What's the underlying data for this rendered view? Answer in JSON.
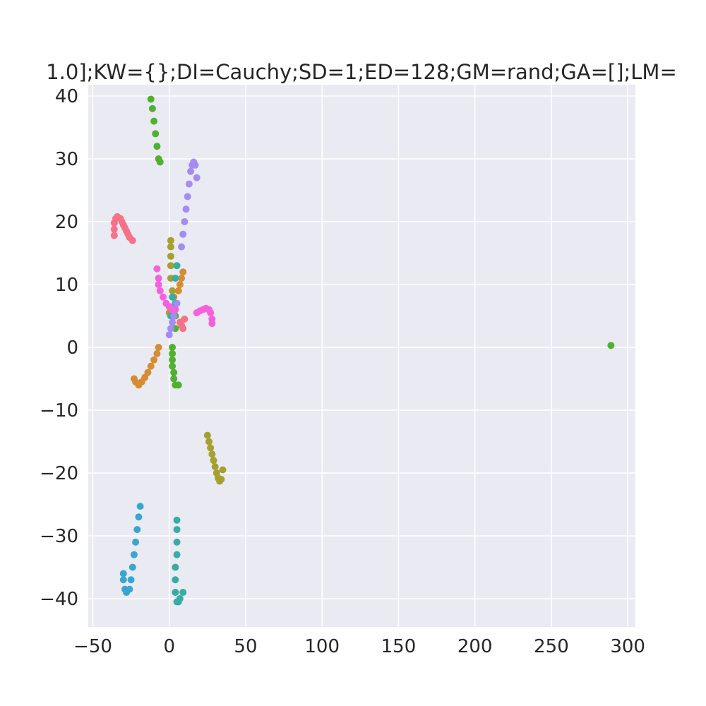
{
  "chart_data": {
    "type": "scatter",
    "title": "1.0];KW={};DI=Cauchy;SD=1;ED=128;GM=rand;GA=[];LM=",
    "xlabel": "",
    "ylabel": "",
    "xlim": [
      -53,
      305
    ],
    "ylim": [
      -44.5,
      41.8
    ],
    "xticks": [
      -50,
      0,
      50,
      100,
      150,
      200,
      250,
      300
    ],
    "yticks": [
      -40,
      -30,
      -20,
      -10,
      0,
      10,
      20,
      30,
      40
    ],
    "xtick_labels": [
      "−50",
      "0",
      "50",
      "100",
      "150",
      "200",
      "250",
      "300"
    ],
    "ytick_labels": [
      "−40",
      "−30",
      "−20",
      "−10",
      "0",
      "10",
      "20",
      "30",
      "40"
    ],
    "grid": true,
    "background": "#eaeaf2",
    "grid_color": "#ffffff",
    "series": [
      {
        "color": "#f77189",
        "points": [
          [
            -36,
            17.8
          ],
          [
            -36,
            18.8
          ],
          [
            -36,
            19.8
          ],
          [
            -35,
            20.5
          ],
          [
            -34,
            20.8
          ],
          [
            -32,
            20.5
          ],
          [
            -31,
            20
          ],
          [
            -30,
            19.5
          ],
          [
            -29,
            19
          ],
          [
            -28,
            18.5
          ],
          [
            -27,
            18
          ],
          [
            -26,
            17.5
          ],
          [
            -24,
            17
          ],
          [
            10,
            4.5
          ],
          [
            9,
            3
          ],
          [
            8,
            3.5
          ],
          [
            7,
            4
          ]
        ]
      },
      {
        "color": "#d58c32",
        "points": [
          [
            -7,
            0
          ],
          [
            -8,
            -1
          ],
          [
            -10,
            -2
          ],
          [
            -12,
            -3
          ],
          [
            -14,
            -4
          ],
          [
            -16,
            -4.8
          ],
          [
            -18,
            -5.5
          ],
          [
            -20,
            -6
          ],
          [
            -22,
            -5.5
          ],
          [
            -23,
            -5
          ],
          [
            6,
            9
          ],
          [
            7,
            10
          ],
          [
            8,
            11
          ],
          [
            9,
            12
          ],
          [
            1,
            6
          ],
          [
            0,
            5.5
          ]
        ]
      },
      {
        "color": "#a4a031",
        "points": [
          [
            25,
            -14
          ],
          [
            26,
            -15
          ],
          [
            27,
            -16
          ],
          [
            28,
            -17
          ],
          [
            29,
            -18
          ],
          [
            30,
            -19
          ],
          [
            31,
            -20
          ],
          [
            32,
            -20.8
          ],
          [
            33,
            -21.3
          ],
          [
            34,
            -21
          ],
          [
            35,
            -19.5
          ],
          [
            1,
            17
          ],
          [
            1,
            16
          ],
          [
            1,
            14.5
          ],
          [
            1,
            13
          ],
          [
            1,
            11
          ],
          [
            2,
            9
          ],
          [
            3,
            8
          ]
        ]
      },
      {
        "color": "#50b131",
        "points": [
          [
            -12,
            39.5
          ],
          [
            -11,
            38
          ],
          [
            -10,
            36
          ],
          [
            -9,
            34
          ],
          [
            -8,
            32
          ],
          [
            -7,
            30
          ],
          [
            -6,
            29.5
          ],
          [
            2,
            0
          ],
          [
            2,
            -1
          ],
          [
            2,
            -2
          ],
          [
            2,
            -3
          ],
          [
            3,
            -4
          ],
          [
            3,
            -5
          ],
          [
            4,
            -6
          ],
          [
            6,
            -6
          ],
          [
            289,
            0.3
          ],
          [
            4,
            3
          ],
          [
            4,
            5
          ]
        ]
      },
      {
        "color": "#36ada4",
        "points": [
          [
            5,
            -27.5
          ],
          [
            5,
            -29
          ],
          [
            5,
            -31
          ],
          [
            5,
            -33
          ],
          [
            4,
            -35
          ],
          [
            4,
            -37
          ],
          [
            4,
            -39
          ],
          [
            5,
            -40.5
          ],
          [
            6,
            -40.5
          ],
          [
            7,
            -40
          ],
          [
            9,
            -39
          ],
          [
            4,
            11
          ],
          [
            5,
            13
          ],
          [
            2,
            8
          ],
          [
            1,
            5
          ]
        ]
      },
      {
        "color": "#38a7d0",
        "points": [
          [
            -19,
            -25.3
          ],
          [
            -20,
            -27
          ],
          [
            -21,
            -29
          ],
          [
            -22,
            -31
          ],
          [
            -23,
            -33
          ],
          [
            -24,
            -35
          ],
          [
            -25,
            -37
          ],
          [
            -26,
            -38.5
          ],
          [
            -28,
            -39
          ],
          [
            -29,
            -38.5
          ],
          [
            -30,
            -37
          ],
          [
            -30,
            -36
          ],
          [
            3,
            5
          ],
          [
            4,
            7
          ]
        ]
      },
      {
        "color": "#a48cf4",
        "points": [
          [
            0,
            2
          ],
          [
            1,
            3
          ],
          [
            2,
            4
          ],
          [
            3,
            5
          ],
          [
            4,
            6
          ],
          [
            5,
            7
          ],
          [
            8,
            16
          ],
          [
            9,
            18
          ],
          [
            10,
            20
          ],
          [
            11,
            22
          ],
          [
            12,
            24
          ],
          [
            13,
            26
          ],
          [
            14,
            28
          ],
          [
            15,
            29
          ],
          [
            16,
            29.5
          ],
          [
            17,
            29
          ],
          [
            18,
            27
          ]
        ]
      },
      {
        "color": "#f561dd",
        "points": [
          [
            -8,
            12.5
          ],
          [
            -7,
            11
          ],
          [
            -7,
            10
          ],
          [
            -6,
            9
          ],
          [
            -4,
            8
          ],
          [
            -2,
            7
          ],
          [
            0,
            6.5
          ],
          [
            2,
            6
          ],
          [
            4,
            6
          ],
          [
            18,
            5.5
          ],
          [
            20,
            5.8
          ],
          [
            22,
            6
          ],
          [
            24,
            6.2
          ],
          [
            26,
            6
          ],
          [
            27,
            5.5
          ],
          [
            28,
            4.5
          ],
          [
            28,
            3.8
          ]
        ]
      }
    ]
  }
}
